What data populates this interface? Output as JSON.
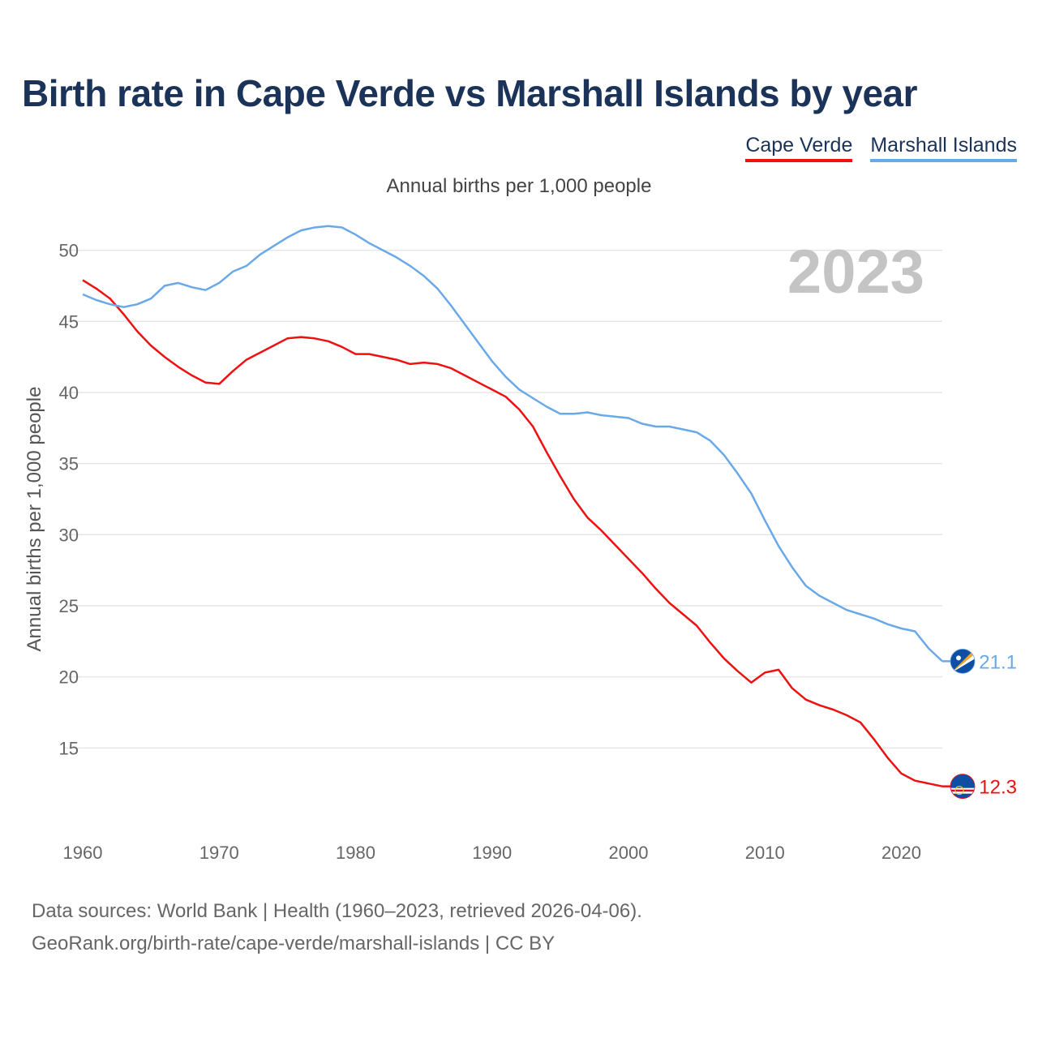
{
  "title": "Birth rate in Cape Verde vs Marshall Islands by year",
  "subtitle": "Annual births per 1,000 people",
  "legend": [
    {
      "name": "Cape Verde",
      "color": "#ee1111"
    },
    {
      "name": "Marshall Islands",
      "color": "#6aa9e8"
    }
  ],
  "source_line1": "Data sources: World Bank | Health (1960–2023, retrieved 2026-04-06).",
  "source_line2": "GeoRank.org/birth-rate/cape-verde/marshall-islands | CC BY",
  "chart_data": {
    "type": "line",
    "title": "Birth rate in Cape Verde vs Marshall Islands by year",
    "xlabel": "",
    "ylabel": "Annual births per 1,000 people",
    "year_label": "2023",
    "xlim": [
      1960,
      2023
    ],
    "ylim": [
      10,
      53
    ],
    "x_ticks": [
      1960,
      1970,
      1980,
      1990,
      2000,
      2010,
      2020
    ],
    "y_ticks": [
      15,
      20,
      25,
      30,
      35,
      40,
      45,
      50
    ],
    "grid": true,
    "x": [
      1960,
      1961,
      1962,
      1963,
      1964,
      1965,
      1966,
      1967,
      1968,
      1969,
      1970,
      1971,
      1972,
      1973,
      1974,
      1975,
      1976,
      1977,
      1978,
      1979,
      1980,
      1981,
      1982,
      1983,
      1984,
      1985,
      1986,
      1987,
      1988,
      1989,
      1990,
      1991,
      1992,
      1993,
      1994,
      1995,
      1996,
      1997,
      1998,
      1999,
      2000,
      2001,
      2002,
      2003,
      2004,
      2005,
      2006,
      2007,
      2008,
      2009,
      2010,
      2011,
      2012,
      2013,
      2014,
      2015,
      2016,
      2017,
      2018,
      2019,
      2020,
      2021,
      2022,
      2023
    ],
    "series": [
      {
        "name": "Cape Verde",
        "color": "#ee1111",
        "end_label": "12.3",
        "flag_icon": "cape-verde-flag-icon",
        "values": [
          47.9,
          47.3,
          46.6,
          45.5,
          44.3,
          43.3,
          42.5,
          41.8,
          41.2,
          40.7,
          40.6,
          41.5,
          42.3,
          42.8,
          43.3,
          43.8,
          43.9,
          43.8,
          43.6,
          43.2,
          42.7,
          42.7,
          42.5,
          42.3,
          42.0,
          42.1,
          42.0,
          41.7,
          41.2,
          40.7,
          40.2,
          39.7,
          38.8,
          37.6,
          35.8,
          34.1,
          32.5,
          31.2,
          30.3,
          29.3,
          28.3,
          27.3,
          26.2,
          25.2,
          24.4,
          23.6,
          22.4,
          21.3,
          20.4,
          19.6,
          20.3,
          20.5,
          19.2,
          18.4,
          18.0,
          17.7,
          17.3,
          16.8,
          15.6,
          14.3,
          13.2,
          12.7,
          12.5,
          12.3
        ]
      },
      {
        "name": "Marshall Islands",
        "color": "#6aa9e8",
        "end_label": "21.1",
        "flag_icon": "marshall-islands-flag-icon",
        "values": [
          46.9,
          46.5,
          46.2,
          46.0,
          46.2,
          46.6,
          47.5,
          47.7,
          47.4,
          47.2,
          47.7,
          48.5,
          48.9,
          49.7,
          50.3,
          50.9,
          51.4,
          51.6,
          51.7,
          51.6,
          51.1,
          50.5,
          50.0,
          49.5,
          48.9,
          48.2,
          47.3,
          46.1,
          44.8,
          43.5,
          42.2,
          41.1,
          40.2,
          39.6,
          39.0,
          38.5,
          38.5,
          38.6,
          38.4,
          38.3,
          38.2,
          37.8,
          37.6,
          37.6,
          37.4,
          37.2,
          36.6,
          35.6,
          34.3,
          32.9,
          31.0,
          29.2,
          27.7,
          26.4,
          25.7,
          25.2,
          24.7,
          24.4,
          24.1,
          23.7,
          23.4,
          23.2,
          22.0,
          21.1
        ]
      }
    ]
  }
}
